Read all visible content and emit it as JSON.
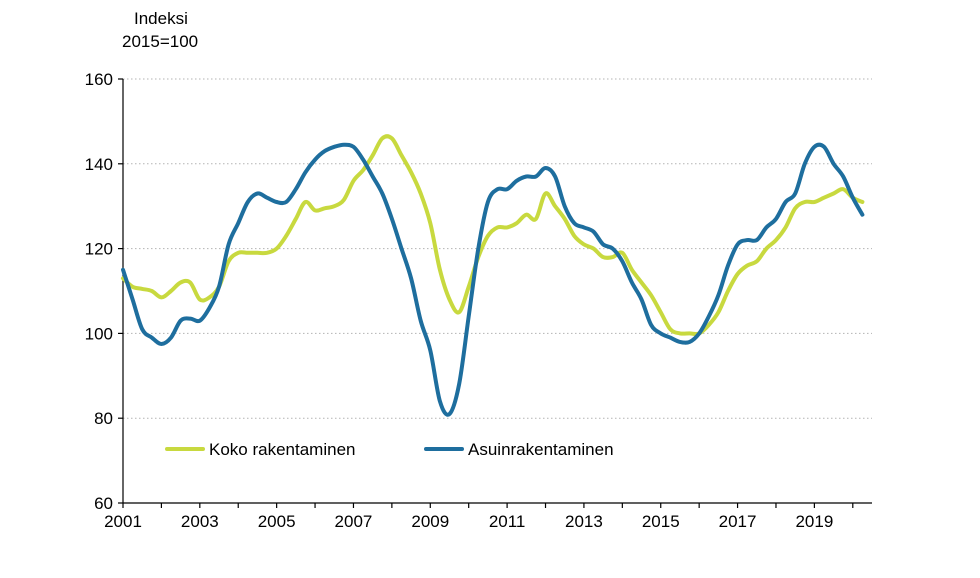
{
  "chart_data": {
    "type": "line",
    "unit_label_line1": "Indeksi",
    "unit_label_line2": "2015=100",
    "ylim": [
      60,
      160
    ],
    "yticks": [
      60,
      80,
      100,
      120,
      140,
      160
    ],
    "xlim": [
      2001,
      2020.5
    ],
    "xticks": [
      2001,
      2003,
      2005,
      2007,
      2009,
      2011,
      2013,
      2015,
      2017,
      2019
    ],
    "grid": true,
    "legend_position": "bottom-left",
    "series": [
      {
        "name": "Koko rakentaminen",
        "color": "#c8d93f",
        "x": [
          2001.0,
          2001.25,
          2001.5,
          2001.75,
          2002.0,
          2002.25,
          2002.5,
          2002.75,
          2003.0,
          2003.25,
          2003.5,
          2003.75,
          2004.0,
          2004.25,
          2004.5,
          2004.75,
          2005.0,
          2005.25,
          2005.5,
          2005.75,
          2006.0,
          2006.25,
          2006.5,
          2006.75,
          2007.0,
          2007.25,
          2007.5,
          2007.75,
          2008.0,
          2008.25,
          2008.5,
          2008.75,
          2009.0,
          2009.25,
          2009.5,
          2009.75,
          2010.0,
          2010.25,
          2010.5,
          2010.75,
          2011.0,
          2011.25,
          2011.5,
          2011.75,
          2012.0,
          2012.25,
          2012.5,
          2012.75,
          2013.0,
          2013.25,
          2013.5,
          2013.75,
          2014.0,
          2014.25,
          2014.5,
          2014.75,
          2015.0,
          2015.25,
          2015.5,
          2015.75,
          2016.0,
          2016.25,
          2016.5,
          2016.75,
          2017.0,
          2017.25,
          2017.5,
          2017.75,
          2018.0,
          2018.25,
          2018.5,
          2018.75,
          2019.0,
          2019.25,
          2019.5,
          2019.75,
          2020.0,
          2020.25
        ],
        "values": [
          113,
          111,
          110.5,
          110,
          108.5,
          110,
          112,
          112,
          108,
          108.5,
          111,
          117,
          119,
          119,
          119,
          119,
          120,
          123,
          127,
          131,
          129,
          129.5,
          130,
          131.5,
          136,
          138.5,
          142,
          146,
          146,
          142,
          138,
          133,
          126,
          115,
          108,
          105,
          111,
          118,
          123,
          125,
          125,
          126,
          128,
          127,
          133,
          130,
          127,
          123,
          121,
          120,
          118,
          118,
          119,
          115,
          112,
          109,
          105,
          101,
          100,
          100,
          100,
          102,
          105,
          110,
          114,
          116,
          117,
          120,
          122,
          125,
          129.5,
          131,
          131,
          132,
          133,
          134,
          132,
          131
        ]
      },
      {
        "name": "Asuinrakentaminen",
        "color": "#1e6e9e",
        "x": [
          2001.0,
          2001.25,
          2001.5,
          2001.75,
          2002.0,
          2002.25,
          2002.5,
          2002.75,
          2003.0,
          2003.25,
          2003.5,
          2003.75,
          2004.0,
          2004.25,
          2004.5,
          2004.75,
          2005.0,
          2005.25,
          2005.5,
          2005.75,
          2006.0,
          2006.25,
          2006.5,
          2006.75,
          2007.0,
          2007.25,
          2007.5,
          2007.75,
          2008.0,
          2008.25,
          2008.5,
          2008.75,
          2009.0,
          2009.25,
          2009.5,
          2009.75,
          2010.0,
          2010.25,
          2010.5,
          2010.75,
          2011.0,
          2011.25,
          2011.5,
          2011.75,
          2012.0,
          2012.25,
          2012.5,
          2012.75,
          2013.0,
          2013.25,
          2013.5,
          2013.75,
          2014.0,
          2014.25,
          2014.5,
          2014.75,
          2015.0,
          2015.25,
          2015.5,
          2015.75,
          2016.0,
          2016.25,
          2016.5,
          2016.75,
          2017.0,
          2017.25,
          2017.5,
          2017.75,
          2018.0,
          2018.25,
          2018.5,
          2018.75,
          2019.0,
          2019.25,
          2019.5,
          2019.75,
          2020.0,
          2020.25
        ],
        "values": [
          115,
          108,
          101,
          99,
          97.5,
          99,
          103,
          103.5,
          103,
          106,
          111,
          121,
          126,
          131,
          133,
          132,
          131,
          131,
          134,
          138,
          141,
          143,
          144,
          144.5,
          144,
          141,
          137,
          133,
          127,
          120,
          113,
          103,
          96,
          84,
          81,
          88,
          104,
          120,
          131,
          134,
          134,
          136,
          137,
          137,
          139,
          137,
          130,
          126,
          125,
          124,
          121,
          120,
          117,
          112,
          108,
          102,
          100,
          99,
          98,
          98,
          100,
          104,
          109,
          116,
          121,
          122,
          122,
          125,
          127,
          131,
          133,
          140,
          144,
          144,
          140,
          137,
          132,
          128
        ]
      }
    ]
  }
}
